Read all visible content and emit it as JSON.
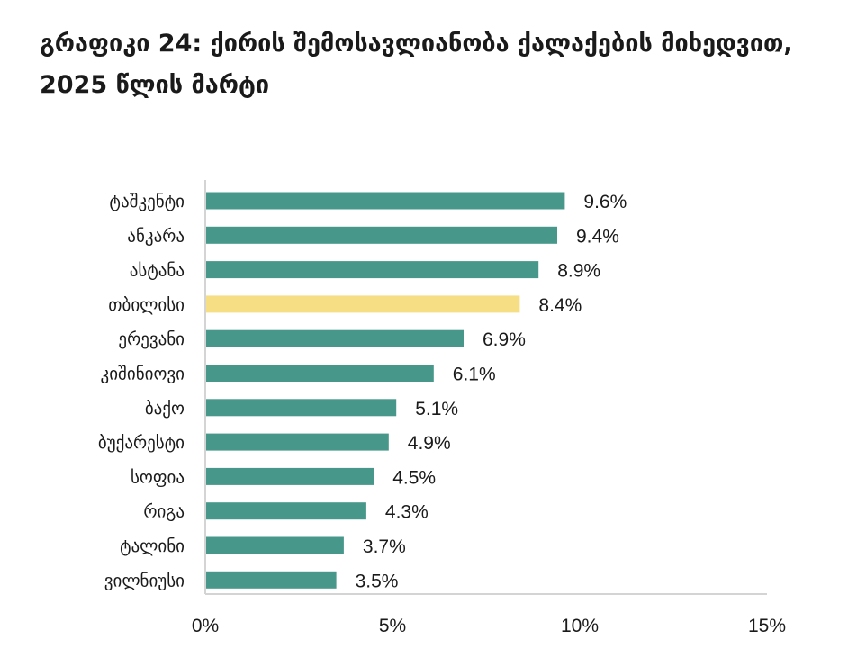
{
  "chart_data": {
    "type": "bar",
    "orientation": "horizontal",
    "title": "გრაფიკი 24: ქირის შემოსავლიანობა ქალაქების მიხედვით, 2025 წლის მარტი",
    "categories": [
      "ტაშკენტი",
      "ანკარა",
      "ასტანა",
      "თბილისი",
      "ერევანი",
      "კიშინიოვი",
      "ბაქო",
      "ბუქარესტი",
      "სოფია",
      "რიგა",
      "ტალინი",
      "ვილნიუსი"
    ],
    "values": [
      9.6,
      9.4,
      8.9,
      8.4,
      6.9,
      6.1,
      5.1,
      4.9,
      4.5,
      4.3,
      3.7,
      3.5
    ],
    "value_labels": [
      "9.6%",
      "9.4%",
      "8.9%",
      "8.4%",
      "6.9%",
      "6.1%",
      "5.1%",
      "4.9%",
      "4.5%",
      "4.3%",
      "3.7%",
      "3.5%"
    ],
    "highlight_category": "თბილისი",
    "xlim": [
      0,
      15
    ],
    "xticks": [
      0,
      5,
      10,
      15
    ],
    "xtick_labels": [
      "0%",
      "5%",
      "10%",
      "15%"
    ],
    "xlabel": "",
    "ylabel": "",
    "grid": false,
    "colors": {
      "bar": "#47988A",
      "highlight": "#F5DE84",
      "axis": "#d4d4d4",
      "text": "#1a1a1a"
    }
  }
}
